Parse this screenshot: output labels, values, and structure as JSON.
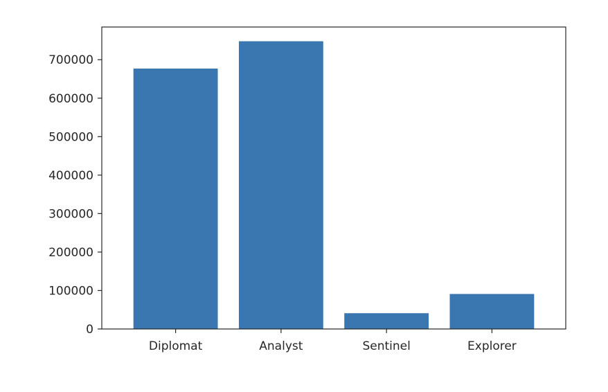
{
  "chart_data": {
    "type": "bar",
    "categories": [
      "Diplomat",
      "Analyst",
      "Sentinel",
      "Explorer"
    ],
    "values": [
      677000,
      748000,
      41000,
      91000
    ],
    "ylim": [
      0,
      785000
    ],
    "yticks": [
      0,
      100000,
      200000,
      300000,
      400000,
      500000,
      600000,
      700000
    ],
    "ytick_labels": [
      "0",
      "100000",
      "200000",
      "300000",
      "400000",
      "500000",
      "600000",
      "700000"
    ],
    "bar_color": "#3a76af",
    "grid": false,
    "legend": "none"
  }
}
